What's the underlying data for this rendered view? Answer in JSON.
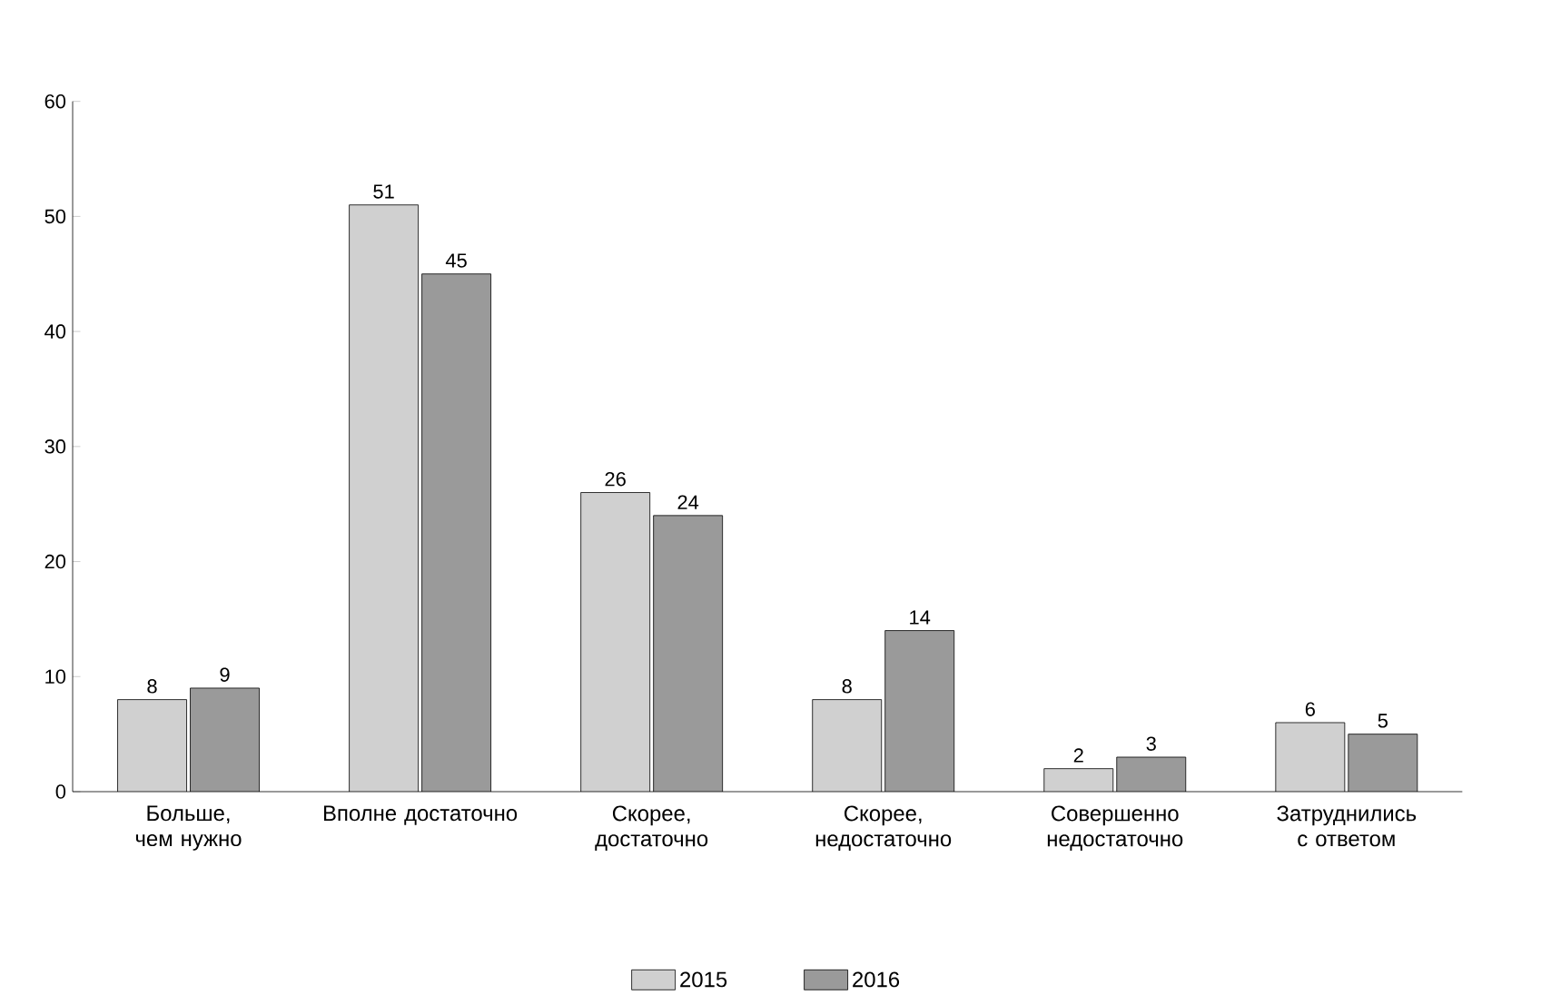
{
  "chart_data": {
    "type": "bar",
    "categories": [
      "Больше, чем нужно",
      "Вполне достаточно",
      "Скорее, достаточно",
      "Скорее, недостаточно",
      "Совершенно недостаточно",
      "Затруднились с ответом"
    ],
    "series": [
      {
        "name": "2015",
        "color": "#d0d0d0",
        "values": [
          8,
          51,
          26,
          8,
          2,
          6
        ]
      },
      {
        "name": "2016",
        "color": "#9a9a9a",
        "values": [
          9,
          45,
          24,
          14,
          3,
          5
        ]
      }
    ],
    "ylim": [
      0,
      60
    ],
    "yticks": [
      0,
      10,
      20,
      30,
      40,
      50,
      60
    ],
    "data_labels": true,
    "legend": "bottom",
    "grid": false
  }
}
